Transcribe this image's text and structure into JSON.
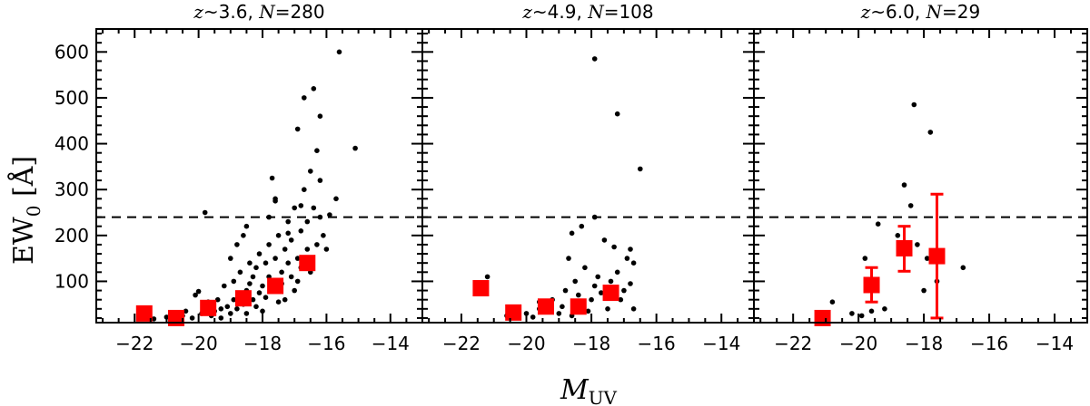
{
  "chart_data": {
    "type": "scatter",
    "xlabel_main": "M",
    "xlabel_sub": "UV",
    "ylabel_main": "EW",
    "ylabel_sub": "0",
    "ylabel_unit": " [Å]",
    "xlim": [
      -23.2,
      -13.0
    ],
    "ylim": [
      10,
      650
    ],
    "xticks": [
      -22,
      -20,
      -18,
      -16,
      -14
    ],
    "yticks": [
      100,
      200,
      300,
      400,
      500,
      600
    ],
    "threshold_y": 240,
    "marker_color": "#ff0000",
    "point_color": "#000000",
    "panels": [
      {
        "z_sym": "z",
        "z_text": "~3.6, ",
        "n_sym": "N",
        "n_text": "=280",
        "points": [
          [
            -21.4,
            18
          ],
          [
            -21.0,
            22
          ],
          [
            -20.8,
            15
          ],
          [
            -20.5,
            25
          ],
          [
            -20.4,
            35
          ],
          [
            -20.2,
            20
          ],
          [
            -20.1,
            70
          ],
          [
            -20.0,
            78
          ],
          [
            -19.9,
            30
          ],
          [
            -19.8,
            45
          ],
          [
            -19.7,
            55
          ],
          [
            -19.6,
            25
          ],
          [
            -19.5,
            35
          ],
          [
            -19.4,
            60
          ],
          [
            -19.3,
            20
          ],
          [
            -19.2,
            90
          ],
          [
            -19.1,
            45
          ],
          [
            -19.0,
            150
          ],
          [
            -19.0,
            30
          ],
          [
            -18.9,
            100
          ],
          [
            -18.9,
            60
          ],
          [
            -18.8,
            40
          ],
          [
            -18.8,
            180
          ],
          [
            -18.7,
            120
          ],
          [
            -18.7,
            70
          ],
          [
            -18.6,
            200
          ],
          [
            -18.6,
            50
          ],
          [
            -18.5,
            80
          ],
          [
            -18.5,
            30
          ],
          [
            -18.4,
            140
          ],
          [
            -18.4,
            95
          ],
          [
            -18.3,
            60
          ],
          [
            -18.3,
            110
          ],
          [
            -18.2,
            130
          ],
          [
            -18.2,
            45
          ],
          [
            -18.1,
            75
          ],
          [
            -18.1,
            160
          ],
          [
            -18.0,
            90
          ],
          [
            -18.0,
            35
          ],
          [
            -17.9,
            140
          ],
          [
            -17.9,
            65
          ],
          [
            -17.8,
            180
          ],
          [
            -17.8,
            110
          ],
          [
            -17.8,
            240
          ],
          [
            -17.7,
            325
          ],
          [
            -17.7,
            85
          ],
          [
            -17.6,
            150
          ],
          [
            -17.6,
            275
          ],
          [
            -17.5,
            55
          ],
          [
            -17.5,
            200
          ],
          [
            -17.4,
            120
          ],
          [
            -17.4,
            95
          ],
          [
            -17.3,
            170
          ],
          [
            -17.3,
            60
          ],
          [
            -17.2,
            230
          ],
          [
            -17.2,
            140
          ],
          [
            -17.1,
            110
          ],
          [
            -17.1,
            190
          ],
          [
            -17.0,
            80
          ],
          [
            -17.0,
            260
          ],
          [
            -16.9,
            150
          ],
          [
            -16.9,
            100
          ],
          [
            -16.9,
            432
          ],
          [
            -16.8,
            210
          ],
          [
            -16.8,
            130
          ],
          [
            -16.7,
            300
          ],
          [
            -16.7,
            500
          ],
          [
            -16.6,
            170
          ],
          [
            -16.6,
            230
          ],
          [
            -16.5,
            340
          ],
          [
            -16.5,
            120
          ],
          [
            -16.4,
            520
          ],
          [
            -16.4,
            260
          ],
          [
            -16.3,
            180
          ],
          [
            -16.3,
            385
          ],
          [
            -16.2,
            460
          ],
          [
            -16.2,
            320
          ],
          [
            -16.1,
            200
          ],
          [
            -16.0,
            170
          ],
          [
            -15.9,
            245
          ],
          [
            -15.7,
            280
          ],
          [
            -15.6,
            600
          ],
          [
            -15.1,
            390
          ],
          [
            -19.8,
            250
          ],
          [
            -17.6,
            280
          ],
          [
            -18.5,
            220
          ],
          [
            -17.2,
            205
          ],
          [
            -16.8,
            265
          ],
          [
            -16.2,
            240
          ],
          [
            -19.3,
            40
          ]
        ],
        "markers": [
          {
            "x": -21.7,
            "y": 30
          },
          {
            "x": -20.7,
            "y": 20
          },
          {
            "x": -19.7,
            "y": 42
          },
          {
            "x": -18.6,
            "y": 63
          },
          {
            "x": -17.6,
            "y": 90
          },
          {
            "x": -16.6,
            "y": 140
          }
        ]
      },
      {
        "z_sym": "z",
        "z_text": "~4.9, ",
        "n_sym": "N",
        "n_text": "=108",
        "points": [
          [
            -21.2,
            110
          ],
          [
            -20.6,
            25
          ],
          [
            -20.4,
            40
          ],
          [
            -20.0,
            30
          ],
          [
            -19.8,
            22
          ],
          [
            -19.6,
            55
          ],
          [
            -19.4,
            35
          ],
          [
            -19.2,
            60
          ],
          [
            -19.0,
            30
          ],
          [
            -18.9,
            45
          ],
          [
            -18.8,
            80
          ],
          [
            -18.7,
            150
          ],
          [
            -18.6,
            25
          ],
          [
            -18.5,
            100
          ],
          [
            -18.4,
            70
          ],
          [
            -18.3,
            50
          ],
          [
            -18.2,
            130
          ],
          [
            -18.1,
            35
          ],
          [
            -18.0,
            60
          ],
          [
            -17.9,
            90
          ],
          [
            -17.9,
            240
          ],
          [
            -17.8,
            110
          ],
          [
            -17.7,
            75
          ],
          [
            -17.6,
            190
          ],
          [
            -17.5,
            40
          ],
          [
            -17.4,
            100
          ],
          [
            -17.3,
            175
          ],
          [
            -17.2,
            120
          ],
          [
            -17.1,
            60
          ],
          [
            -17.0,
            80
          ],
          [
            -16.9,
            150
          ],
          [
            -16.8,
            95
          ],
          [
            -16.7,
            40
          ],
          [
            -17.9,
            585
          ],
          [
            -17.2,
            465
          ],
          [
            -16.5,
            345
          ],
          [
            -18.3,
            220
          ],
          [
            -16.8,
            170
          ],
          [
            -16.7,
            140
          ],
          [
            -18.6,
            205
          ],
          [
            -17.5,
            70
          ],
          [
            -19.6,
            40
          ]
        ],
        "markers": [
          {
            "x": -21.4,
            "y": 85
          },
          {
            "x": -20.4,
            "y": 32
          },
          {
            "x": -19.4,
            "y": 45
          },
          {
            "x": -18.4,
            "y": 45
          },
          {
            "x": -17.4,
            "y": 75
          }
        ]
      },
      {
        "z_sym": "z",
        "z_text": "~6.0, ",
        "n_sym": "N",
        "n_text": "=29",
        "points": [
          [
            -20.8,
            55
          ],
          [
            -20.2,
            30
          ],
          [
            -19.9,
            25
          ],
          [
            -19.8,
            150
          ],
          [
            -19.6,
            35
          ],
          [
            -19.4,
            225
          ],
          [
            -19.2,
            40
          ],
          [
            -18.6,
            310
          ],
          [
            -18.5,
            170
          ],
          [
            -18.4,
            265
          ],
          [
            -18.3,
            485
          ],
          [
            -18.2,
            180
          ],
          [
            -18.0,
            80
          ],
          [
            -17.9,
            150
          ],
          [
            -17.8,
            425
          ],
          [
            -17.6,
            100
          ],
          [
            -16.8,
            130
          ],
          [
            -18.8,
            200
          ]
        ],
        "markers": [
          {
            "x": -21.1,
            "y": 20,
            "err_lo": 0,
            "err_hi": 0
          },
          {
            "x": -19.6,
            "y": 92,
            "err_lo": 37,
            "err_hi": 38
          },
          {
            "x": -18.6,
            "y": 172,
            "err_lo": 50,
            "err_hi": 48
          },
          {
            "x": -17.6,
            "y": 155,
            "err_lo": 135,
            "err_hi": 135
          }
        ]
      }
    ]
  }
}
